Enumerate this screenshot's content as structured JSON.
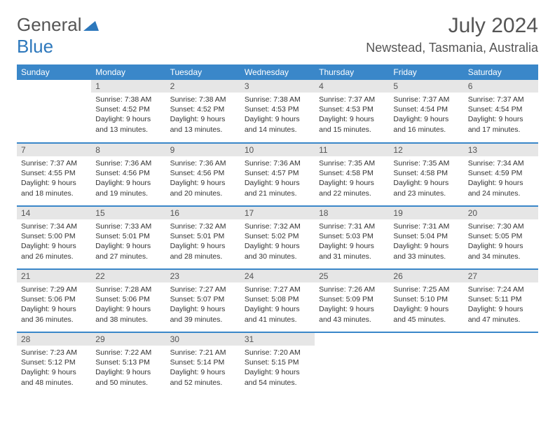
{
  "brand": {
    "text1": "General",
    "text2": "Blue"
  },
  "title": "July 2024",
  "location": "Newstead, Tasmania, Australia",
  "weekdays": [
    "Sunday",
    "Monday",
    "Tuesday",
    "Wednesday",
    "Thursday",
    "Friday",
    "Saturday"
  ],
  "colors": {
    "header_bg": "#3a87c9",
    "header_text": "#ffffff",
    "day_bar_bg": "#e6e6e6",
    "text": "#333333",
    "accent": "#2d78bc",
    "row_border": "#3a87c9",
    "background": "#ffffff"
  },
  "grid": {
    "cols": 7,
    "rows": 5,
    "start_offset": 1,
    "days_in_month": 31
  },
  "days": {
    "1": {
      "sunrise": "7:38 AM",
      "sunset": "4:52 PM",
      "daylight": "9 hours and 13 minutes."
    },
    "2": {
      "sunrise": "7:38 AM",
      "sunset": "4:52 PM",
      "daylight": "9 hours and 13 minutes."
    },
    "3": {
      "sunrise": "7:38 AM",
      "sunset": "4:53 PM",
      "daylight": "9 hours and 14 minutes."
    },
    "4": {
      "sunrise": "7:37 AM",
      "sunset": "4:53 PM",
      "daylight": "9 hours and 15 minutes."
    },
    "5": {
      "sunrise": "7:37 AM",
      "sunset": "4:54 PM",
      "daylight": "9 hours and 16 minutes."
    },
    "6": {
      "sunrise": "7:37 AM",
      "sunset": "4:54 PM",
      "daylight": "9 hours and 17 minutes."
    },
    "7": {
      "sunrise": "7:37 AM",
      "sunset": "4:55 PM",
      "daylight": "9 hours and 18 minutes."
    },
    "8": {
      "sunrise": "7:36 AM",
      "sunset": "4:56 PM",
      "daylight": "9 hours and 19 minutes."
    },
    "9": {
      "sunrise": "7:36 AM",
      "sunset": "4:56 PM",
      "daylight": "9 hours and 20 minutes."
    },
    "10": {
      "sunrise": "7:36 AM",
      "sunset": "4:57 PM",
      "daylight": "9 hours and 21 minutes."
    },
    "11": {
      "sunrise": "7:35 AM",
      "sunset": "4:58 PM",
      "daylight": "9 hours and 22 minutes."
    },
    "12": {
      "sunrise": "7:35 AM",
      "sunset": "4:58 PM",
      "daylight": "9 hours and 23 minutes."
    },
    "13": {
      "sunrise": "7:34 AM",
      "sunset": "4:59 PM",
      "daylight": "9 hours and 24 minutes."
    },
    "14": {
      "sunrise": "7:34 AM",
      "sunset": "5:00 PM",
      "daylight": "9 hours and 26 minutes."
    },
    "15": {
      "sunrise": "7:33 AM",
      "sunset": "5:01 PM",
      "daylight": "9 hours and 27 minutes."
    },
    "16": {
      "sunrise": "7:32 AM",
      "sunset": "5:01 PM",
      "daylight": "9 hours and 28 minutes."
    },
    "17": {
      "sunrise": "7:32 AM",
      "sunset": "5:02 PM",
      "daylight": "9 hours and 30 minutes."
    },
    "18": {
      "sunrise": "7:31 AM",
      "sunset": "5:03 PM",
      "daylight": "9 hours and 31 minutes."
    },
    "19": {
      "sunrise": "7:31 AM",
      "sunset": "5:04 PM",
      "daylight": "9 hours and 33 minutes."
    },
    "20": {
      "sunrise": "7:30 AM",
      "sunset": "5:05 PM",
      "daylight": "9 hours and 34 minutes."
    },
    "21": {
      "sunrise": "7:29 AM",
      "sunset": "5:06 PM",
      "daylight": "9 hours and 36 minutes."
    },
    "22": {
      "sunrise": "7:28 AM",
      "sunset": "5:06 PM",
      "daylight": "9 hours and 38 minutes."
    },
    "23": {
      "sunrise": "7:27 AM",
      "sunset": "5:07 PM",
      "daylight": "9 hours and 39 minutes."
    },
    "24": {
      "sunrise": "7:27 AM",
      "sunset": "5:08 PM",
      "daylight": "9 hours and 41 minutes."
    },
    "25": {
      "sunrise": "7:26 AM",
      "sunset": "5:09 PM",
      "daylight": "9 hours and 43 minutes."
    },
    "26": {
      "sunrise": "7:25 AM",
      "sunset": "5:10 PM",
      "daylight": "9 hours and 45 minutes."
    },
    "27": {
      "sunrise": "7:24 AM",
      "sunset": "5:11 PM",
      "daylight": "9 hours and 47 minutes."
    },
    "28": {
      "sunrise": "7:23 AM",
      "sunset": "5:12 PM",
      "daylight": "9 hours and 48 minutes."
    },
    "29": {
      "sunrise": "7:22 AM",
      "sunset": "5:13 PM",
      "daylight": "9 hours and 50 minutes."
    },
    "30": {
      "sunrise": "7:21 AM",
      "sunset": "5:14 PM",
      "daylight": "9 hours and 52 minutes."
    },
    "31": {
      "sunrise": "7:20 AM",
      "sunset": "5:15 PM",
      "daylight": "9 hours and 54 minutes."
    }
  },
  "labels": {
    "sunrise": "Sunrise: ",
    "sunset": "Sunset: ",
    "daylight": "Daylight: "
  }
}
